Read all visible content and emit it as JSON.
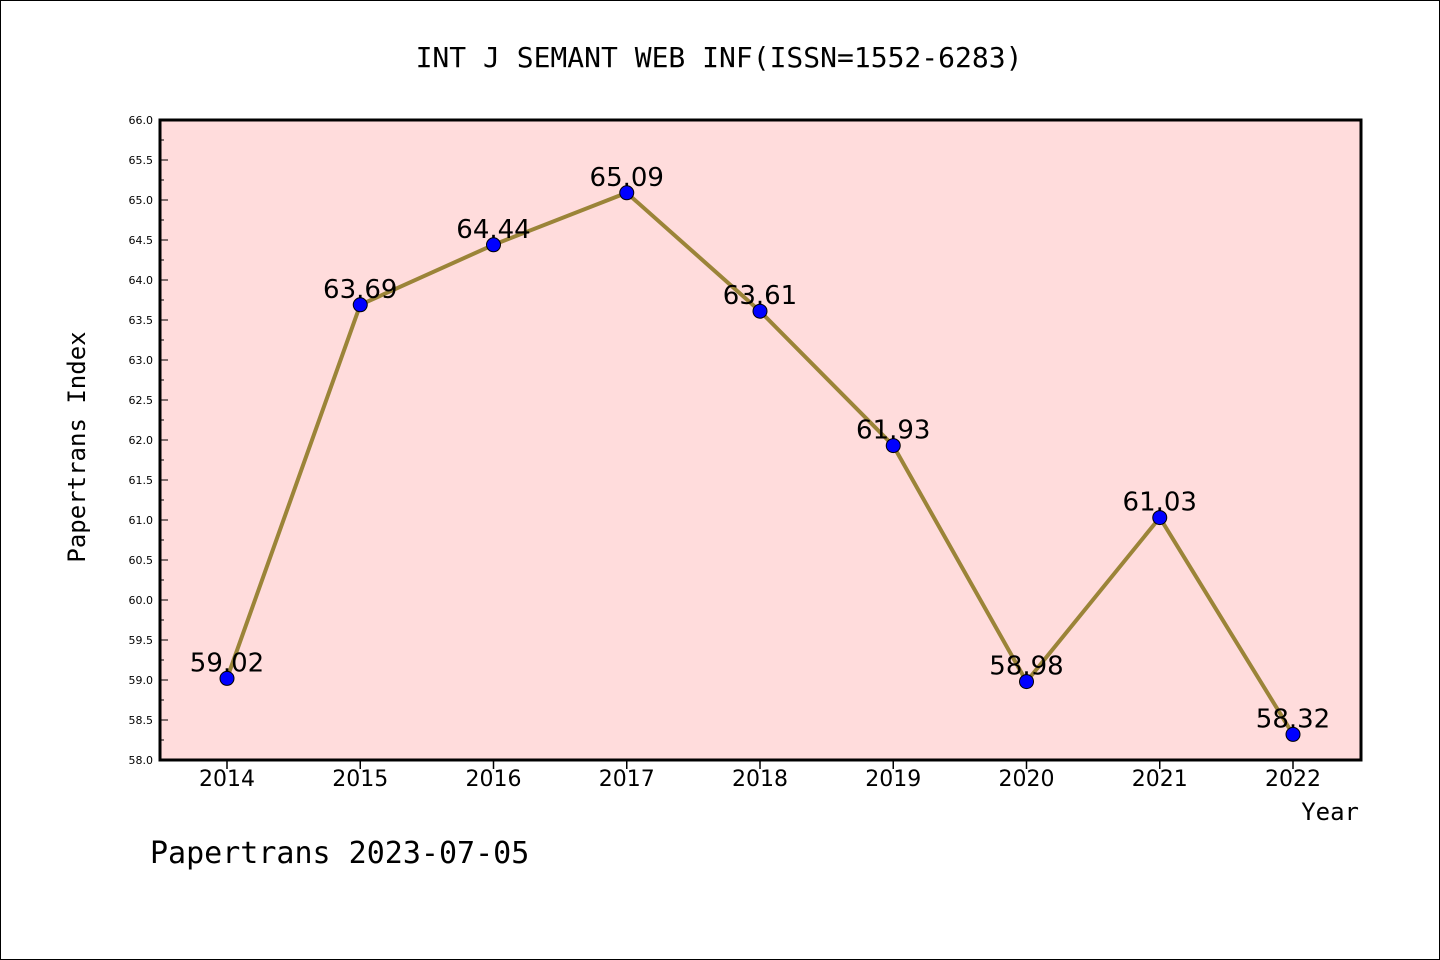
{
  "chart_data": {
    "type": "line",
    "title": "INT J SEMANT WEB INF(ISSN=1552-6283)",
    "xlabel": "Year",
    "ylabel": "Papertrans Index",
    "categories": [
      "2014",
      "2015",
      "2016",
      "2017",
      "2018",
      "2019",
      "2020",
      "2021",
      "2022"
    ],
    "values": [
      59.02,
      63.69,
      64.44,
      65.09,
      63.61,
      61.93,
      58.98,
      61.03,
      58.32
    ],
    "value_labels": [
      "59.02",
      "63.69",
      "64.44",
      "65.09",
      "63.61",
      "61.93",
      "58.98",
      "61.03",
      "58.32"
    ],
    "ylim": [
      58.0,
      66.0
    ],
    "yticks": [
      "58.0",
      "58.5",
      "59.0",
      "59.5",
      "60.0",
      "60.5",
      "61.0",
      "61.5",
      "62.0",
      "62.5",
      "63.0",
      "63.5",
      "64.0",
      "64.5",
      "65.0",
      "65.5",
      "66.0"
    ],
    "grid": false,
    "legend": "none",
    "colors": {
      "plot_background": "#ffdcdc",
      "line": "#9b8438",
      "marker": "#0000ff"
    }
  },
  "footer": "Papertrans 2023-07-05"
}
